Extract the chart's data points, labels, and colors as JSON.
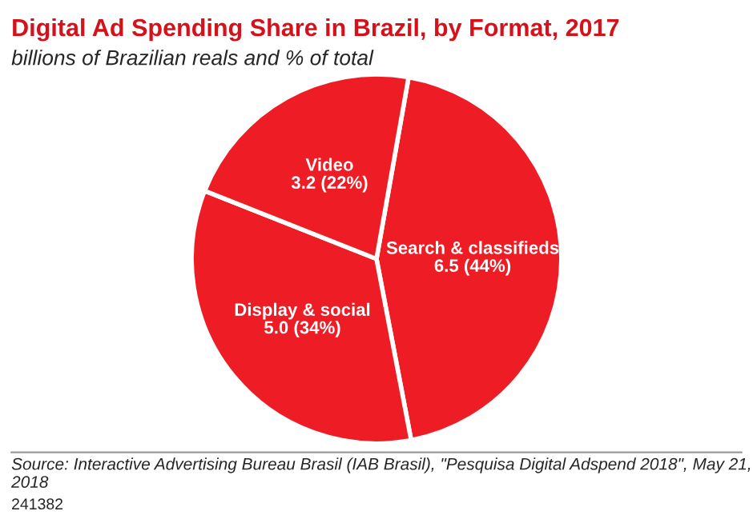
{
  "chart_data": {
    "type": "pie",
    "title": "Digital Ad Spending Share in Brazil, by Format, 2017",
    "subtitle": "billions of Brazilian reals and % of total",
    "categories": [
      "Search & classifieds",
      "Display & social",
      "Video"
    ],
    "values": [
      6.5,
      5.0,
      3.2
    ],
    "value_labels": [
      "6.5 (44%)",
      "5.0 (34%)",
      "3.2 (22%)"
    ],
    "colors": [
      "#ee1c25",
      "#ee1c25",
      "#ee1c25"
    ],
    "annotations": [
      "Source: Interactive Advertising Bureau Brasil (IAB Brasil), \"Pesquisa Digital Adspend 2018\", May 21, 2018",
      "241382"
    ]
  }
}
